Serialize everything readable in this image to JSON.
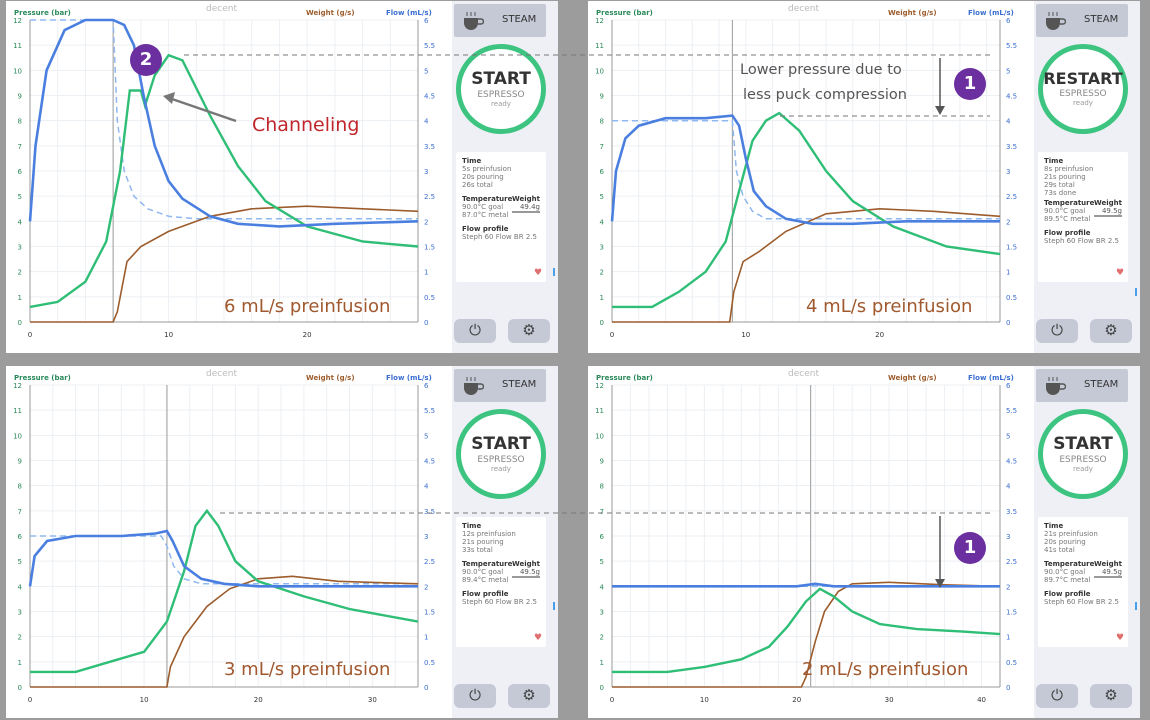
{
  "shared": {
    "left_axis_title": "Pressure (bar)",
    "weight_axis_title": "Weight (g/s)",
    "flow_axis_title": "Flow (mL/s)",
    "logo": "decent",
    "steam_label": "STEAM",
    "espresso_label": "ESPRESSO",
    "ready_label": "ready",
    "time_heading": "Time",
    "temperature_heading": "Temperature",
    "weight_heading": "Weight",
    "flow_profile_heading": "Flow profile",
    "flow_profile_value": "Steph 60 Flow BR 2.5",
    "power_icon": "power-icon",
    "gear_icon": "gear-icon",
    "colors": {
      "pressure": "#4a7fe0",
      "flow": "#2fbe76",
      "weight": "#9c5c2c",
      "accent_purple": "#6b2fa0",
      "start_ring": "#3ec481",
      "channeling_red": "#c0272d"
    },
    "pressure_ticks": [
      "0",
      "1",
      "2",
      "3",
      "4",
      "5",
      "6",
      "7",
      "8",
      "9",
      "10",
      "11",
      "12"
    ],
    "flow_ticks": [
      "0",
      "0.5",
      "1",
      "1.5",
      "2",
      "2.5",
      "3",
      "3.5",
      "4",
      "4.5",
      "5",
      "5.5",
      "6"
    ]
  },
  "panels": [
    {
      "start_label": "START",
      "time_lines": [
        "5s preinfusion",
        "20s pouring",
        "26s total"
      ],
      "temp_lines": [
        "90.0°C goal",
        "87.0°C metal"
      ],
      "weight_value": "49.4g",
      "caption": "6 mL/s preinfusion",
      "x_ticks": [
        "0",
        "10",
        "20"
      ],
      "x_max": 28
    },
    {
      "start_label": "RESTART",
      "time_lines": [
        "8s preinfusion",
        "21s pouring",
        "29s total",
        "73s done"
      ],
      "temp_lines": [
        "90.0°C goal",
        "89.5°C metal"
      ],
      "weight_value": "49.5g",
      "caption": "4 mL/s preinfusion",
      "x_ticks": [
        "0",
        "10",
        "20"
      ],
      "x_max": 29
    },
    {
      "start_label": "START",
      "time_lines": [
        "12s preinfusion",
        "21s pouring",
        "33s total"
      ],
      "temp_lines": [
        "90.0°C goal",
        "89.4°C metal"
      ],
      "weight_value": "49.5g",
      "caption": "3 mL/s preinfusion",
      "x_ticks": [
        "0",
        "10",
        "20",
        "30"
      ],
      "x_max": 34
    },
    {
      "start_label": "START",
      "time_lines": [
        "21s preinfusion",
        "20s pouring",
        "41s total"
      ],
      "temp_lines": [
        "90.0°C goal",
        "89.7°C metal"
      ],
      "weight_value": "49.5g",
      "caption": "2 mL/s preinfusion",
      "x_ticks": [
        "0",
        "10",
        "20",
        "30",
        "40"
      ],
      "x_max": 42
    }
  ],
  "annotations": {
    "channeling_number": "2",
    "channeling_text": "Channeling",
    "lower_pressure_number": "1",
    "lower_pressure_line1": "Lower pressure due to",
    "lower_pressure_line2": "less puck compression",
    "bottom_number": "1"
  }
}
